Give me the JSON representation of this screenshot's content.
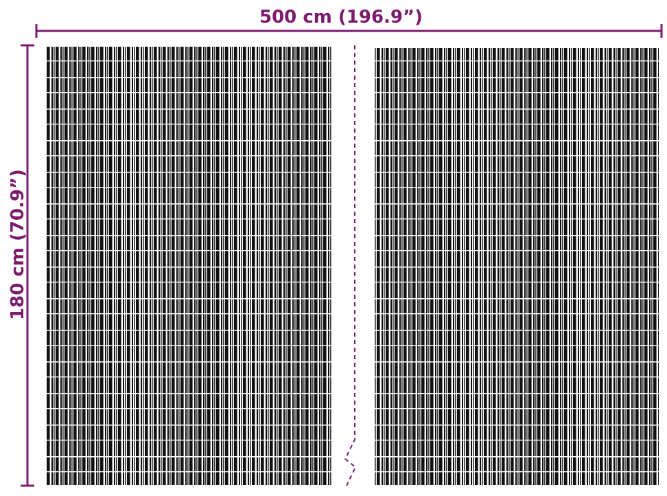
{
  "width_label": "500 cm (196.9”)",
  "height_label": "180 cm (70.9”)"
}
